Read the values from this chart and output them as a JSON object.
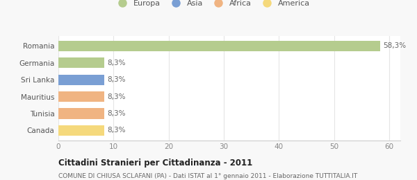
{
  "categories": [
    "Canada",
    "Tunisia",
    "Mauritius",
    "Sri Lanka",
    "Germania",
    "Romania"
  ],
  "values": [
    8.3,
    8.3,
    8.3,
    8.3,
    8.3,
    58.3
  ],
  "colors": [
    "#f5d97c",
    "#f0b482",
    "#f0b482",
    "#7a9fd4",
    "#b5cc8e",
    "#b5cc8e"
  ],
  "bar_labels": [
    "8,3%",
    "8,3%",
    "8,3%",
    "8,3%",
    "8,3%",
    "58,3%"
  ],
  "legend_labels": [
    "Europa",
    "Asia",
    "Africa",
    "America"
  ],
  "legend_colors": [
    "#b5cc8e",
    "#7a9fd4",
    "#f0b482",
    "#f5d97c"
  ],
  "title": "Cittadini Stranieri per Cittadinanza - 2011",
  "subtitle": "COMUNE DI CHIUSA SCLAFANI (PA) - Dati ISTAT al 1° gennaio 2011 - Elaborazione TUTTITALIA.IT",
  "xlim": [
    0,
    62
  ],
  "xticks": [
    0,
    10,
    20,
    30,
    40,
    50,
    60
  ],
  "background_color": "#f8f8f8",
  "bar_background": "#ffffff",
  "grid_color": "#e5e5e5",
  "axis_color": "#cccccc",
  "tick_label_color": "#888888",
  "ylabel_color": "#555555",
  "label_color": "#666666",
  "title_color": "#222222",
  "subtitle_color": "#666666"
}
